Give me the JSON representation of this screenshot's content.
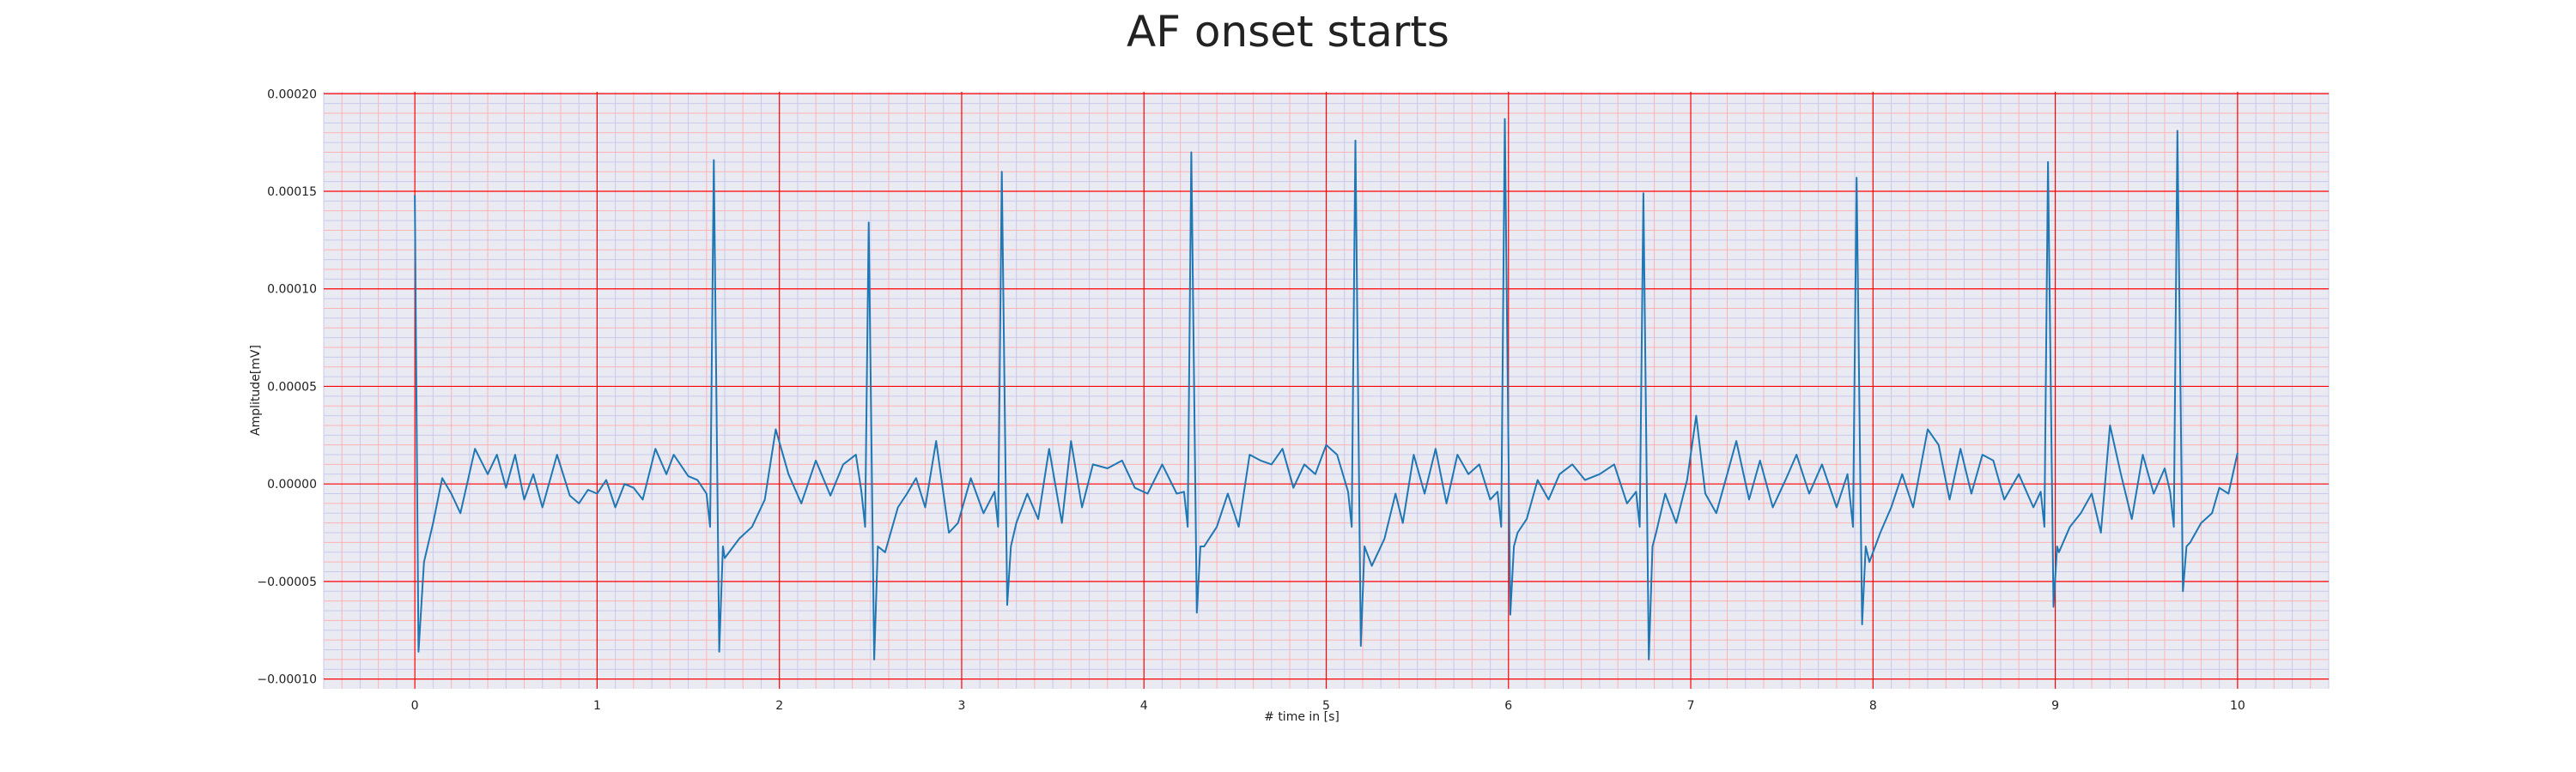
{
  "chart_data": {
    "type": "line",
    "title": "AF onset starts",
    "xlabel": "# time in [s]",
    "ylabel": "Amplitude[mV]",
    "xlim": [
      -0.5,
      10.5
    ],
    "ylim": [
      -0.000105,
      0.000201
    ],
    "xticks": [
      0,
      1,
      2,
      3,
      4,
      5,
      6,
      7,
      8,
      9,
      10
    ],
    "xtick_labels": [
      "0",
      "1",
      "2",
      "3",
      "4",
      "5",
      "6",
      "7",
      "8",
      "9",
      "10"
    ],
    "yticks": [
      -0.0001,
      -5e-05,
      0.0,
      5e-05,
      0.0001,
      0.00015,
      0.0002
    ],
    "ytick_labels": [
      "−0.00010",
      "−0.00005",
      "0.00000",
      "0.00005",
      "0.00010",
      "0.00015",
      "0.00020"
    ],
    "grid": true,
    "minor_grid": true,
    "legend": "none",
    "colors": {
      "line": "#1f77b4",
      "plot_background": "#eaeaf2",
      "major_grid": "#ff0000",
      "minor_grid_primary": "#ffb3b3",
      "minor_grid_secondary": "#c9c9ec"
    },
    "r_peaks": [
      {
        "t": 0.0,
        "peak": 0.000148,
        "trough": -8.6e-05
      },
      {
        "t": 1.64,
        "peak": 0.000166,
        "trough": -8.6e-05
      },
      {
        "t": 2.49,
        "peak": 0.000134,
        "trough": -9e-05
      },
      {
        "t": 3.22,
        "peak": 0.00016,
        "trough": -6.2e-05
      },
      {
        "t": 4.26,
        "peak": 0.00017,
        "trough": -6.6e-05
      },
      {
        "t": 5.16,
        "peak": 0.000176,
        "trough": -8.3e-05
      },
      {
        "t": 5.98,
        "peak": 0.000187,
        "trough": -6.7e-05
      },
      {
        "t": 6.74,
        "peak": 0.000149,
        "trough": -9e-05
      },
      {
        "t": 7.91,
        "peak": 0.000157,
        "trough": -7.2e-05
      },
      {
        "t": 8.96,
        "peak": 0.000165,
        "trough": -6.3e-05
      },
      {
        "t": 9.67,
        "peak": 0.000181,
        "trough": -5.5e-05
      }
    ],
    "baseline": [
      [
        0.05,
        -4e-05
      ],
      [
        0.1,
        -2e-05
      ],
      [
        0.15,
        3e-06
      ],
      [
        0.2,
        -5e-06
      ],
      [
        0.25,
        -1.5e-05
      ],
      [
        0.33,
        1.8e-05
      ],
      [
        0.4,
        5e-06
      ],
      [
        0.45,
        1.5e-05
      ],
      [
        0.5,
        -2e-06
      ],
      [
        0.55,
        1.5e-05
      ],
      [
        0.6,
        -8e-06
      ],
      [
        0.65,
        5e-06
      ],
      [
        0.7,
        -1.2e-05
      ],
      [
        0.78,
        1.5e-05
      ],
      [
        0.85,
        -6e-06
      ],
      [
        0.9,
        -1e-05
      ],
      [
        0.95,
        -3e-06
      ],
      [
        1.0,
        -5e-06
      ],
      [
        1.05,
        2e-06
      ],
      [
        1.1,
        -1.2e-05
      ],
      [
        1.15,
        0.0
      ],
      [
        1.2,
        -2e-06
      ],
      [
        1.25,
        -8e-06
      ],
      [
        1.32,
        1.8e-05
      ],
      [
        1.38,
        5e-06
      ],
      [
        1.42,
        1.5e-05
      ],
      [
        1.5,
        4e-06
      ],
      [
        1.55,
        2e-06
      ],
      [
        1.6,
        -5e-06
      ],
      [
        1.7,
        -3.8e-05
      ],
      [
        1.78,
        -2.8e-05
      ],
      [
        1.85,
        -2.2e-05
      ],
      [
        1.92,
        -8e-06
      ],
      [
        1.98,
        2.8e-05
      ],
      [
        2.05,
        5e-06
      ],
      [
        2.12,
        -1e-05
      ],
      [
        2.2,
        1.2e-05
      ],
      [
        2.28,
        -6e-06
      ],
      [
        2.35,
        1e-05
      ],
      [
        2.42,
        1.5e-05
      ],
      [
        2.58,
        -3.5e-05
      ],
      [
        2.65,
        -1.2e-05
      ],
      [
        2.7,
        -5e-06
      ],
      [
        2.75,
        3e-06
      ],
      [
        2.8,
        -1.2e-05
      ],
      [
        2.86,
        2.2e-05
      ],
      [
        2.93,
        -2.5e-05
      ],
      [
        2.98,
        -2e-05
      ],
      [
        3.05,
        3e-06
      ],
      [
        3.12,
        -1.5e-05
      ],
      [
        3.3,
        -2e-05
      ],
      [
        3.36,
        -5e-06
      ],
      [
        3.42,
        -1.8e-05
      ],
      [
        3.48,
        1.8e-05
      ],
      [
        3.55,
        -2e-05
      ],
      [
        3.6,
        2.2e-05
      ],
      [
        3.66,
        -1.2e-05
      ],
      [
        3.72,
        1e-05
      ],
      [
        3.8,
        8e-06
      ],
      [
        3.88,
        1.2e-05
      ],
      [
        3.95,
        -2e-06
      ],
      [
        4.02,
        -5e-06
      ],
      [
        4.1,
        1e-05
      ],
      [
        4.18,
        -5e-06
      ],
      [
        4.33,
        -3.2e-05
      ],
      [
        4.4,
        -2.2e-05
      ],
      [
        4.46,
        -5e-06
      ],
      [
        4.52,
        -2.2e-05
      ],
      [
        4.58,
        1.5e-05
      ],
      [
        4.64,
        1.2e-05
      ],
      [
        4.7,
        1e-05
      ],
      [
        4.76,
        1.8e-05
      ],
      [
        4.82,
        -2e-06
      ],
      [
        4.88,
        1e-05
      ],
      [
        4.94,
        5e-06
      ],
      [
        5.0,
        2e-05
      ],
      [
        5.06,
        1.5e-05
      ],
      [
        5.25,
        -4.2e-05
      ],
      [
        5.32,
        -2.8e-05
      ],
      [
        5.38,
        -5e-06
      ],
      [
        5.42,
        -2e-05
      ],
      [
        5.48,
        1.5e-05
      ],
      [
        5.54,
        -5e-06
      ],
      [
        5.6,
        1.8e-05
      ],
      [
        5.66,
        -1e-05
      ],
      [
        5.72,
        1.5e-05
      ],
      [
        5.78,
        5e-06
      ],
      [
        5.84,
        1e-05
      ],
      [
        5.9,
        -8e-06
      ],
      [
        6.05,
        -2.5e-05
      ],
      [
        6.1,
        -1.8e-05
      ],
      [
        6.16,
        2e-06
      ],
      [
        6.22,
        -8e-06
      ],
      [
        6.28,
        5e-06
      ],
      [
        6.35,
        1e-05
      ],
      [
        6.42,
        2e-06
      ],
      [
        6.5,
        5e-06
      ],
      [
        6.58,
        1e-05
      ],
      [
        6.65,
        -1e-05
      ],
      [
        6.81,
        -2.5e-05
      ],
      [
        6.86,
        -5e-06
      ],
      [
        6.92,
        -2e-05
      ],
      [
        6.98,
        2e-06
      ],
      [
        7.03,
        3.5e-05
      ],
      [
        7.08,
        -5e-06
      ],
      [
        7.14,
        -1.5e-05
      ],
      [
        7.2,
        5e-06
      ],
      [
        7.25,
        2.2e-05
      ],
      [
        7.32,
        -8e-06
      ],
      [
        7.38,
        1.2e-05
      ],
      [
        7.45,
        -1.2e-05
      ],
      [
        7.52,
        2e-06
      ],
      [
        7.58,
        1.5e-05
      ],
      [
        7.65,
        -5e-06
      ],
      [
        7.72,
        1e-05
      ],
      [
        7.8,
        -1.2e-05
      ],
      [
        7.86,
        5e-06
      ],
      [
        7.98,
        -4e-05
      ],
      [
        8.04,
        -2.5e-05
      ],
      [
        8.1,
        -1.2e-05
      ],
      [
        8.16,
        5e-06
      ],
      [
        8.22,
        -1.2e-05
      ],
      [
        8.3,
        2.8e-05
      ],
      [
        8.36,
        2e-05
      ],
      [
        8.42,
        -8e-06
      ],
      [
        8.48,
        1.8e-05
      ],
      [
        8.54,
        -5e-06
      ],
      [
        8.6,
        1.5e-05
      ],
      [
        8.66,
        1.2e-05
      ],
      [
        8.72,
        -8e-06
      ],
      [
        8.8,
        5e-06
      ],
      [
        8.88,
        -1.2e-05
      ],
      [
        9.02,
        -3.5e-05
      ],
      [
        9.08,
        -2.2e-05
      ],
      [
        9.14,
        -1.5e-05
      ],
      [
        9.2,
        -5e-06
      ],
      [
        9.25,
        -2.5e-05
      ],
      [
        9.3,
        3e-05
      ],
      [
        9.36,
        5e-06
      ],
      [
        9.42,
        -1.8e-05
      ],
      [
        9.48,
        1.5e-05
      ],
      [
        9.54,
        -5e-06
      ],
      [
        9.6,
        8e-06
      ],
      [
        9.74,
        -3e-05
      ],
      [
        9.8,
        -2e-05
      ],
      [
        9.86,
        -1.5e-05
      ],
      [
        9.9,
        -2e-06
      ],
      [
        9.95,
        -5e-06
      ],
      [
        10.0,
        1.6e-05
      ]
    ]
  }
}
